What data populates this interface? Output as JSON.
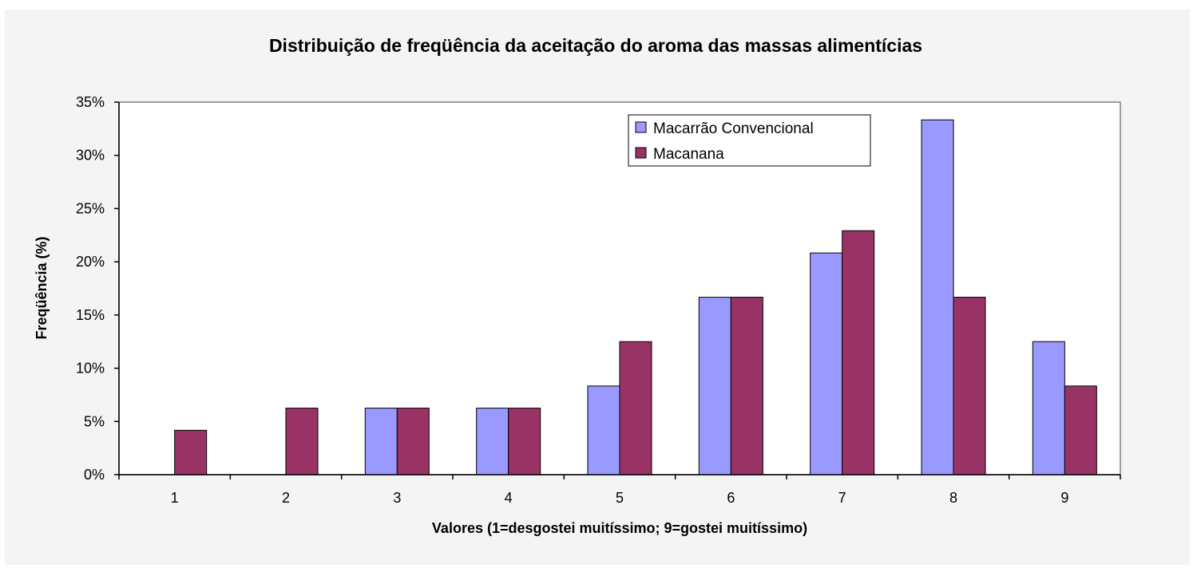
{
  "chart_data": {
    "type": "bar",
    "title": "Distribuição de freqüência da aceitação do aroma das massas alimentícias",
    "xlabel": "Valores (1=desgostei muitíssimo; 9=gostei muitíssimo)",
    "ylabel": "Freqüência (%)",
    "categories": [
      "1",
      "2",
      "3",
      "4",
      "5",
      "6",
      "7",
      "8",
      "9"
    ],
    "yticks": [
      "0%",
      "5%",
      "10%",
      "15%",
      "20%",
      "25%",
      "30%",
      "35%"
    ],
    "ylim": [
      0,
      35
    ],
    "grid": false,
    "legend_position": "top-right",
    "series": [
      {
        "name": "Macarrão Convencional",
        "color": "#9999ff",
        "values": [
          0,
          0,
          6.25,
          6.25,
          8.33,
          16.67,
          20.83,
          33.33,
          12.5
        ]
      },
      {
        "name": "Macanana",
        "color": "#993366",
        "values": [
          4.17,
          6.25,
          6.25,
          6.25,
          12.5,
          16.67,
          22.92,
          16.67,
          8.33
        ]
      }
    ]
  }
}
